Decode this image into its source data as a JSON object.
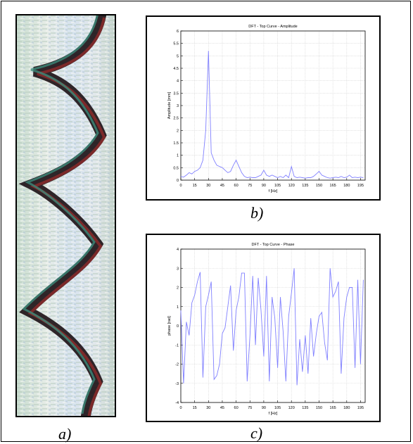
{
  "captions": {
    "a": "a)",
    "b": "b)",
    "c": "c)"
  },
  "colors": {
    "line": "#8080ff",
    "grid": "#d0d0d0",
    "axis": "#000000"
  },
  "chart_data": [
    {
      "id": "amplitude",
      "type": "line",
      "title": "DFT - Top Curve - Amplitude",
      "xlabel": "f [Hz]",
      "ylabel": "Amplitude [mm]",
      "xlim": [
        0,
        200
      ],
      "ylim": [
        0,
        6
      ],
      "xticks": [
        0,
        15,
        30,
        45,
        60,
        75,
        90,
        105,
        120,
        135,
        150,
        165,
        180,
        195
      ],
      "yticks": [
        0,
        0.5,
        1,
        1.5,
        2,
        2.5,
        3,
        3.5,
        4,
        4.5,
        5,
        5.5,
        6
      ],
      "ytick_labels": [
        "0",
        "0.5",
        "1",
        "1.5",
        "2",
        "2.5",
        "3",
        "3.5",
        "4",
        "4.5",
        "5",
        "5.5",
        "6"
      ],
      "grid": true,
      "x": [
        0,
        3,
        6,
        9,
        12,
        15,
        18,
        21,
        24,
        27,
        30,
        33,
        36,
        39,
        42,
        45,
        48,
        51,
        54,
        57,
        60,
        63,
        66,
        69,
        72,
        75,
        78,
        81,
        84,
        87,
        90,
        93,
        96,
        99,
        102,
        105,
        108,
        111,
        114,
        117,
        120,
        123,
        126,
        129,
        132,
        135,
        138,
        141,
        144,
        147,
        150,
        153,
        156,
        159,
        162,
        165,
        168,
        171,
        174,
        177,
        180,
        183,
        186,
        189,
        192,
        195,
        198
      ],
      "values": [
        0.15,
        0.12,
        0.2,
        0.3,
        0.25,
        0.35,
        0.4,
        0.5,
        0.8,
        2.0,
        5.2,
        1.1,
        0.8,
        0.6,
        0.55,
        0.5,
        0.4,
        0.3,
        0.35,
        0.6,
        0.8,
        0.55,
        0.3,
        0.15,
        0.1,
        0.12,
        0.1,
        0.1,
        0.15,
        0.2,
        0.4,
        0.2,
        0.15,
        0.2,
        0.15,
        0.1,
        0.15,
        0.1,
        0.2,
        0.1,
        0.55,
        0.15,
        0.1,
        0.12,
        0.1,
        0.08,
        0.1,
        0.1,
        0.15,
        0.25,
        0.35,
        0.2,
        0.15,
        0.1,
        0.08,
        0.1,
        0.12,
        0.1,
        0.15,
        0.1,
        0.12,
        0.2,
        0.1,
        0.12,
        0.1,
        0.12,
        0.1
      ]
    },
    {
      "id": "phase",
      "type": "line",
      "title": "DFT - Top Curve - Phase",
      "xlabel": "f [Hz]",
      "ylabel": "phase [rad]",
      "xlim": [
        0,
        200
      ],
      "ylim": [
        -4,
        4
      ],
      "xticks": [
        0,
        15,
        30,
        45,
        60,
        75,
        90,
        105,
        120,
        135,
        150,
        165,
        180,
        195
      ],
      "yticks": [
        -4,
        -3,
        -2,
        -1,
        0,
        1,
        2,
        3,
        4
      ],
      "ytick_labels": [
        "-4",
        "-3",
        "-2",
        "-1",
        "0",
        "1",
        "2",
        "3",
        "4"
      ],
      "grid": true,
      "x": [
        0,
        3,
        6,
        9,
        12,
        15,
        18,
        21,
        24,
        27,
        30,
        33,
        36,
        39,
        42,
        45,
        48,
        51,
        54,
        57,
        60,
        63,
        66,
        69,
        72,
        75,
        78,
        81,
        84,
        87,
        90,
        93,
        96,
        99,
        102,
        105,
        108,
        111,
        114,
        117,
        120,
        123,
        126,
        129,
        132,
        135,
        138,
        141,
        144,
        147,
        150,
        153,
        156,
        159,
        162,
        165,
        168,
        171,
        174,
        177,
        180,
        183,
        186,
        189,
        192,
        195,
        198
      ],
      "values": [
        0.8,
        -3.0,
        0.2,
        -0.5,
        1.2,
        1.6,
        2.3,
        2.8,
        -2.7,
        1.0,
        1.6,
        2.3,
        -2.8,
        -2.6,
        -2.0,
        -0.4,
        -0.1,
        1.0,
        2.1,
        -1.3,
        0.8,
        1.5,
        2.75,
        2.75,
        -2.9,
        -0.5,
        2.6,
        -1.0,
        2.5,
        0.8,
        -1.6,
        2.6,
        -2.9,
        1.5,
        0.4,
        -2.2,
        1.5,
        -0.3,
        -2.9,
        0.5,
        1.7,
        3.0,
        -3.1,
        -0.7,
        -2.4,
        -0.5,
        -2.5,
        0.4,
        -1.6,
        -0.4,
        0.5,
        0.7,
        -0.9,
        -1.8,
        3.0,
        1.5,
        1.8,
        2.3,
        -2.5,
        0.4,
        1.5,
        2.0,
        2.0,
        -2.2,
        2.4,
        -2.0,
        2.4
      ]
    }
  ]
}
